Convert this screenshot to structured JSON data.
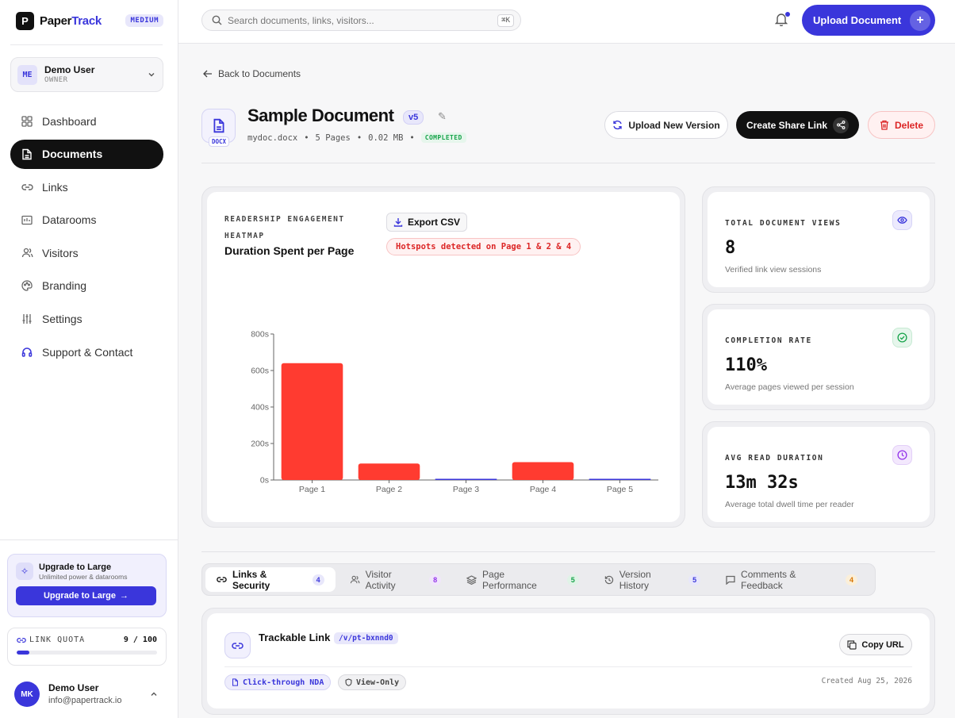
{
  "brand": {
    "name_part1": "Paper",
    "name_part2": "Track",
    "mark": "P",
    "plan": "MEDIUM"
  },
  "account": {
    "initials": "ME",
    "name": "Demo User",
    "role": "OWNER"
  },
  "nav": {
    "items": [
      {
        "label": "Dashboard",
        "icon": "grid-icon"
      },
      {
        "label": "Documents",
        "icon": "document-icon"
      },
      {
        "label": "Links",
        "icon": "link-icon"
      },
      {
        "label": "Datarooms",
        "icon": "dataroom-icon"
      },
      {
        "label": "Visitors",
        "icon": "users-icon"
      },
      {
        "label": "Branding",
        "icon": "palette-icon"
      },
      {
        "label": "Settings",
        "icon": "sliders-icon"
      },
      {
        "label": "Support & Contact",
        "icon": "headset-icon"
      }
    ]
  },
  "upgrade": {
    "title": "Upgrade to Large",
    "subtitle": "Unlimited power & datarooms",
    "button": "Upgrade to Large"
  },
  "quota": {
    "label": "LINK QUOTA",
    "value": "9 / 100",
    "fraction": 0.09
  },
  "profile": {
    "initials": "MK",
    "name": "Demo User",
    "email": "info@papertrack.io"
  },
  "topbar": {
    "search_placeholder": "Search documents, links, visitors...",
    "shortcut": "⌘K",
    "upload_label": "Upload Document"
  },
  "doc": {
    "back_label": "Back to Documents",
    "type_tag": "DOCX",
    "title": "Sample Document",
    "version": "v5",
    "filename": "mydoc.docx",
    "pages": "5 Pages",
    "size": "0.02 MB",
    "status": "COMPLETED",
    "actions": {
      "new_version": "Upload New Version",
      "share": "Create Share Link",
      "delete": "Delete"
    }
  },
  "heatmap": {
    "label_line1": "READERSHIP ENGAGEMENT",
    "label_line2": "HEATMAP",
    "title": "Duration Spent per Page",
    "export_label": "Export CSV",
    "hotspot_text": "Hotspots detected on Page 1 & 2 & 4"
  },
  "chart_data": {
    "type": "bar",
    "categories": [
      "Page 1",
      "Page 2",
      "Page 3",
      "Page 4",
      "Page 5"
    ],
    "values": [
      640,
      90,
      3,
      98,
      3
    ],
    "ylim": [
      0,
      800
    ],
    "yticks": [
      0,
      200,
      400,
      600,
      800
    ],
    "ytick_labels": [
      "0s",
      "200s",
      "400s",
      "600s",
      "800s"
    ],
    "hot_color": "#ff3b30",
    "cold_color": "#3a36db",
    "grid": false
  },
  "stats": [
    {
      "label": "TOTAL DOCUMENT VIEWS",
      "value": "8",
      "sub": "Verified link view sessions",
      "icon": "eye-icon",
      "color": "#3a36db",
      "bg": "#eceafd"
    },
    {
      "label": "COMPLETION RATE",
      "value": "110%",
      "sub": "Average pages viewed per session",
      "icon": "check-circle-icon",
      "color": "#16a34a",
      "bg": "#e6f6ec"
    },
    {
      "label": "AVG READ DURATION",
      "value": "13m 32s",
      "sub": "Average total dwell time per reader",
      "icon": "clock-icon",
      "color": "#9333ea",
      "bg": "#f3e8fd"
    }
  ],
  "tabs": [
    {
      "label": "Links & Security",
      "count": "4",
      "icon": "link-icon",
      "color": "#3a36db",
      "bg": "#e8e7fb"
    },
    {
      "label": "Visitor Activity",
      "count": "8",
      "icon": "users-icon",
      "color": "#9333ea",
      "bg": "#f1e6fb"
    },
    {
      "label": "Page Performance",
      "count": "5",
      "icon": "layers-icon",
      "color": "#16a34a",
      "bg": "#e0f3e7"
    },
    {
      "label": "Version History",
      "count": "5",
      "icon": "history-icon",
      "color": "#3a36db",
      "bg": "#e8e7fb"
    },
    {
      "label": "Comments & Feedback",
      "count": "4",
      "icon": "comment-icon",
      "color": "#d97706",
      "bg": "#fbefd9"
    }
  ],
  "link": {
    "title": "Trackable Link",
    "slug": "/v/pt-bxnnd0",
    "copy_label": "Copy URL",
    "chip_nda": "Click-through NDA",
    "chip_view": "View-Only",
    "created": "Created Aug 25, 2026"
  }
}
